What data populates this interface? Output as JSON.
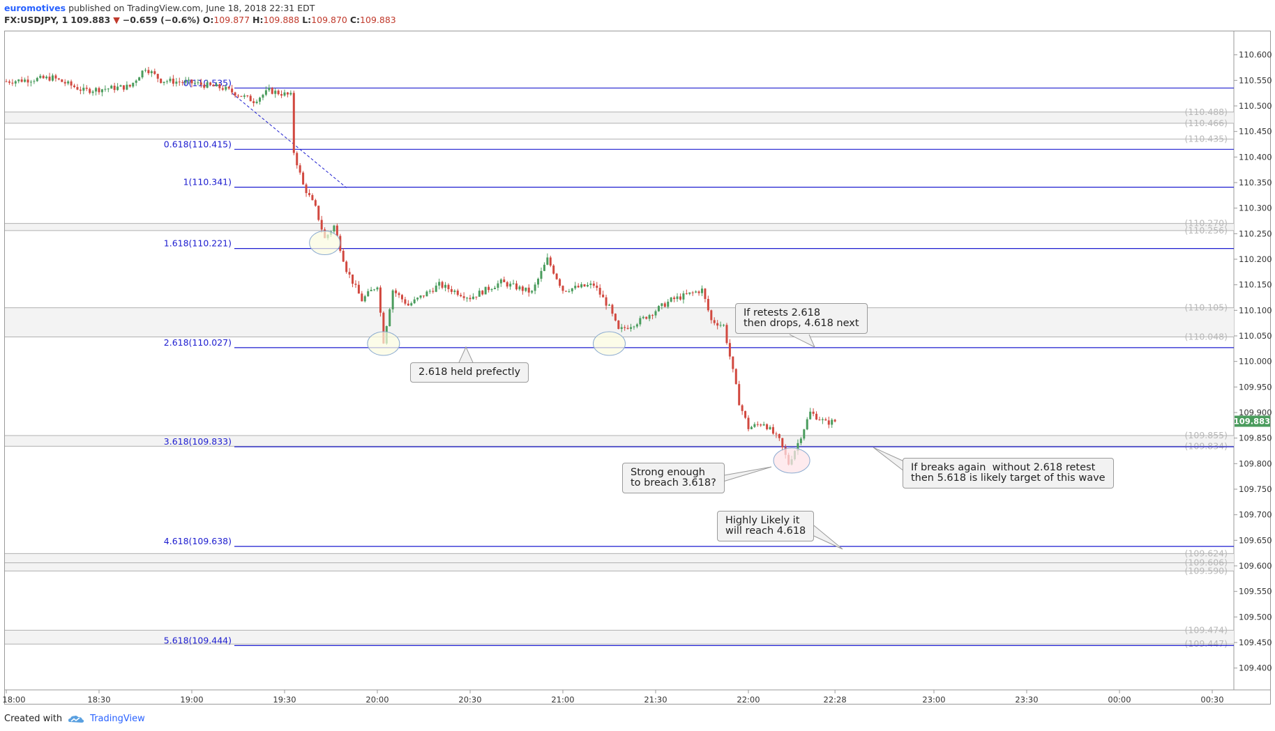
{
  "header": {
    "user": "euromotives",
    "published": "published on TradingView.com, June 18, 2018 22:31 EDT",
    "symbol": "FX:USDJPY, 1",
    "last": "109.883",
    "arrow": "▼",
    "change": "−0.659 (−0.6%)",
    "o_label": "O:",
    "o": "109.877",
    "h_label": "H:",
    "h": "109.888",
    "l_label": "L:",
    "l": "109.870",
    "c_label": "C:",
    "c": "109.883"
  },
  "footer": {
    "created_with": "Created with",
    "brand": "TradingView",
    "logo_icon": "tradingview-cloud-icon"
  },
  "callouts": {
    "held": "2.618 held prefectly",
    "retest": "If retests 2.618\nthen drops, 4.618 next",
    "strong": "Strong enough\nto breach 3.618?",
    "likely": "Highly Likely it\nwill reach 4.618",
    "breaks": "If breaks again  without 2.618 retest\nthen 5.618 is likely target of this wave"
  },
  "colors": {
    "fib": "#1c1ccf",
    "up": "#4a9c5d",
    "down": "#d1483f",
    "level": "#b0b0b0",
    "price_tag": "#4a9c5d"
  },
  "chart_data": {
    "type": "candlestick",
    "symbol": "FX:USDJPY",
    "interval": "1",
    "ylim": [
      109.36,
      110.635
    ],
    "y_ticks": [
      "110.600",
      "110.550",
      "110.500",
      "110.450",
      "110.400",
      "110.350",
      "110.300",
      "110.250",
      "110.200",
      "110.150",
      "110.100",
      "110.050",
      "110.000",
      "109.950",
      "109.900",
      "109.850",
      "109.800",
      "109.750",
      "109.700",
      "109.650",
      "109.600",
      "109.550",
      "109.500",
      "109.450",
      "109.400"
    ],
    "x_ticks": [
      "18:00",
      "18:30",
      "19:00",
      "19:30",
      "20:00",
      "20:30",
      "21:00",
      "21:30",
      "22:00",
      "22:28",
      "23:00",
      "23:30",
      "00:00",
      "00:30"
    ],
    "last_price": "109.883",
    "fib_levels": [
      {
        "label": "0(110.535)",
        "value": 110.535
      },
      {
        "label": "0.618(110.415)",
        "value": 110.415
      },
      {
        "label": "1(110.341)",
        "value": 110.341
      },
      {
        "label": "1.618(110.221)",
        "value": 110.221
      },
      {
        "label": "2.618(110.027)",
        "value": 110.027
      },
      {
        "label": "3.618(109.833)",
        "value": 109.833
      },
      {
        "label": "4.618(109.638)",
        "value": 109.638
      },
      {
        "label": "5.618(109.444)",
        "value": 109.444
      }
    ],
    "horizontal_levels": [
      {
        "label": "(110.488)",
        "value": 110.488
      },
      {
        "label": "(110.466)",
        "value": 110.466
      },
      {
        "label": "(110.435)",
        "value": 110.435
      },
      {
        "label": "(110.270)",
        "value": 110.27
      },
      {
        "label": "(110.256)",
        "value": 110.256
      },
      {
        "label": "(110.105)",
        "value": 110.105
      },
      {
        "label": "(110.048)",
        "value": 110.048
      },
      {
        "label": "(109.855)",
        "value": 109.855
      },
      {
        "label": "(109.834)",
        "value": 109.834
      },
      {
        "label": "(109.624)",
        "value": 109.624
      },
      {
        "label": "(109.606)",
        "value": 109.606
      },
      {
        "label": "(109.590)",
        "value": 109.59
      },
      {
        "label": "(109.474)",
        "value": 109.474
      },
      {
        "label": "(109.447)",
        "value": 109.447
      }
    ],
    "series_path": [
      [
        "18:00",
        110.548
      ],
      [
        "18:15",
        110.555
      ],
      [
        "18:25",
        110.53
      ],
      [
        "18:40",
        110.538
      ],
      [
        "18:45",
        110.575
      ],
      [
        "18:50",
        110.55
      ],
      [
        "19:00",
        110.545
      ],
      [
        "19:10",
        110.535
      ],
      [
        "19:20",
        110.51
      ],
      [
        "19:25",
        110.53
      ],
      [
        "19:32",
        110.52
      ],
      [
        "19:33",
        110.41
      ],
      [
        "19:36",
        110.345
      ],
      [
        "19:40",
        110.3
      ],
      [
        "19:43",
        110.24
      ],
      [
        "19:46",
        110.265
      ],
      [
        "19:50",
        110.18
      ],
      [
        "19:55",
        110.12
      ],
      [
        "20:00",
        110.15
      ],
      [
        "20:02",
        110.04
      ],
      [
        "20:05",
        110.14
      ],
      [
        "20:10",
        110.11
      ],
      [
        "20:20",
        110.15
      ],
      [
        "20:30",
        110.125
      ],
      [
        "20:40",
        110.155
      ],
      [
        "20:50",
        110.135
      ],
      [
        "20:55",
        110.2
      ],
      [
        "21:00",
        110.14
      ],
      [
        "21:10",
        110.15
      ],
      [
        "21:15",
        110.105
      ],
      [
        "21:18",
        110.06
      ],
      [
        "21:25",
        110.08
      ],
      [
        "21:35",
        110.12
      ],
      [
        "21:45",
        110.14
      ],
      [
        "21:48",
        110.08
      ],
      [
        "21:52",
        110.07
      ],
      [
        "21:54",
        110.01
      ],
      [
        "21:57",
        109.92
      ],
      [
        "22:00",
        109.87
      ],
      [
        "22:05",
        109.88
      ],
      [
        "22:10",
        109.845
      ],
      [
        "22:13",
        109.8
      ],
      [
        "22:16",
        109.84
      ],
      [
        "22:20",
        109.9
      ],
      [
        "22:25",
        109.88
      ],
      [
        "22:28",
        109.883
      ]
    ]
  }
}
